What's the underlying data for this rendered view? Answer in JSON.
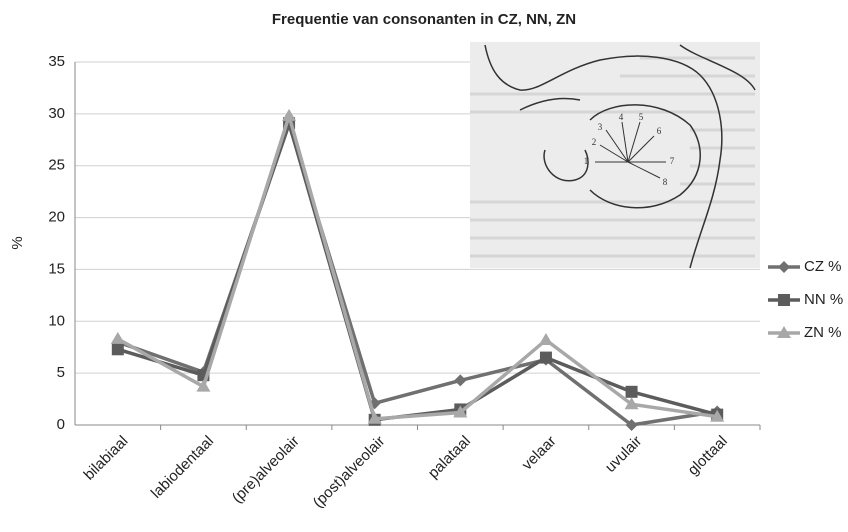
{
  "chart_data": {
    "type": "line",
    "title": "Frequentie van consonanten in CZ, NN, ZN",
    "y_label": "%",
    "categories": [
      "bilabiaal",
      "labiodentaal",
      "(pre)alveolair",
      "(post)alveolair",
      "palataal",
      "velaar",
      "uvulair",
      "glottaal"
    ],
    "series": [
      {
        "name": "CZ %",
        "color": "#707070",
        "marker": "diamond",
        "values": [
          8,
          5.1,
          29,
          2.1,
          4.3,
          6.3,
          0,
          1.3
        ]
      },
      {
        "name": "NN %",
        "color": "#5c5c5c",
        "marker": "square",
        "values": [
          7.3,
          4.8,
          29.1,
          0.5,
          1.5,
          6.5,
          3.2,
          1.0
        ]
      },
      {
        "name": "ZN %",
        "color": "#a8a8a8",
        "marker": "triangle",
        "values": [
          8.3,
          3.7,
          29.8,
          0.6,
          1.2,
          8.2,
          2.0,
          0.8
        ]
      }
    ],
    "ylim": [
      0,
      35
    ],
    "yticks": [
      0,
      5,
      10,
      15,
      20,
      25,
      30,
      35
    ],
    "grid": true,
    "legend": "right"
  },
  "inset_image": {
    "labels": [
      "1",
      "2",
      "3",
      "4",
      "5",
      "6",
      "7",
      "8"
    ]
  }
}
